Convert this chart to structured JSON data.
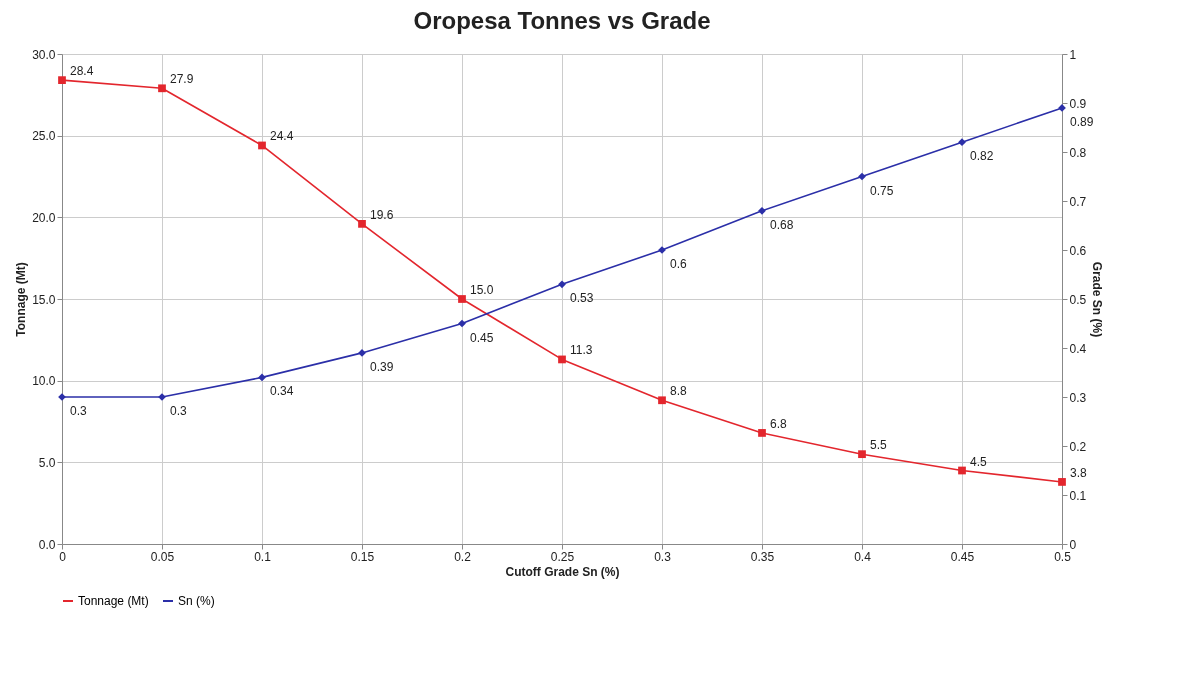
{
  "chart_data": {
    "type": "line",
    "title": "Oropesa Tonnes vs Grade",
    "xlabel": "Cutoff Grade Sn (%)",
    "ylabel": "Tonnage (Mt)",
    "y2label": "Grade Sn (%)",
    "x": [
      0,
      0.05,
      0.1,
      0.15,
      0.2,
      0.25,
      0.3,
      0.35,
      0.4,
      0.45,
      0.5
    ],
    "xlim": [
      0,
      0.5
    ],
    "xticks": [
      0,
      0.05,
      0.1,
      0.15,
      0.2,
      0.25,
      0.3,
      0.35,
      0.4,
      0.45,
      0.5
    ],
    "ylim": [
      0,
      30
    ],
    "yticks": [
      {
        "value": 0,
        "label": "0.0"
      },
      {
        "value": 5,
        "label": "5.0"
      },
      {
        "value": 10,
        "label": "10.0"
      },
      {
        "value": 15,
        "label": "15.0"
      },
      {
        "value": 20,
        "label": "20.0"
      },
      {
        "value": 25,
        "label": "25.0"
      },
      {
        "value": 30,
        "label": "30.0"
      }
    ],
    "y2lim": [
      0,
      1
    ],
    "y2ticks": [
      0,
      0.1,
      0.2,
      0.3,
      0.4,
      0.5,
      0.6,
      0.7,
      0.8,
      0.9,
      1
    ],
    "grid": true,
    "legend": "bottom",
    "series": [
      {
        "name": "Tonnage (Mt)",
        "color": "#e3262d",
        "marker": "square",
        "values": [
          28.4,
          27.9,
          24.4,
          19.6,
          15.0,
          11.3,
          8.8,
          6.8,
          5.5,
          4.5,
          3.8
        ],
        "value_labels": [
          "28.4",
          "27.9",
          "24.4",
          "19.6",
          "15.0",
          "11.3",
          "8.8",
          "6.8",
          "5.5",
          "4.5",
          "3.8"
        ]
      },
      {
        "name": "Sn (%)",
        "color": "#2b2fa8",
        "marker": "diamond",
        "axis": "y2",
        "values": [
          0.3,
          0.3,
          0.34,
          0.39,
          0.45,
          0.53,
          0.6,
          0.68,
          0.75,
          0.82,
          0.89
        ],
        "value_labels": [
          "0.3",
          "0.3",
          "0.34",
          "0.39",
          "0.45",
          "0.53",
          "0.6",
          "0.68",
          "0.75",
          "0.82",
          "0.89"
        ]
      }
    ]
  }
}
